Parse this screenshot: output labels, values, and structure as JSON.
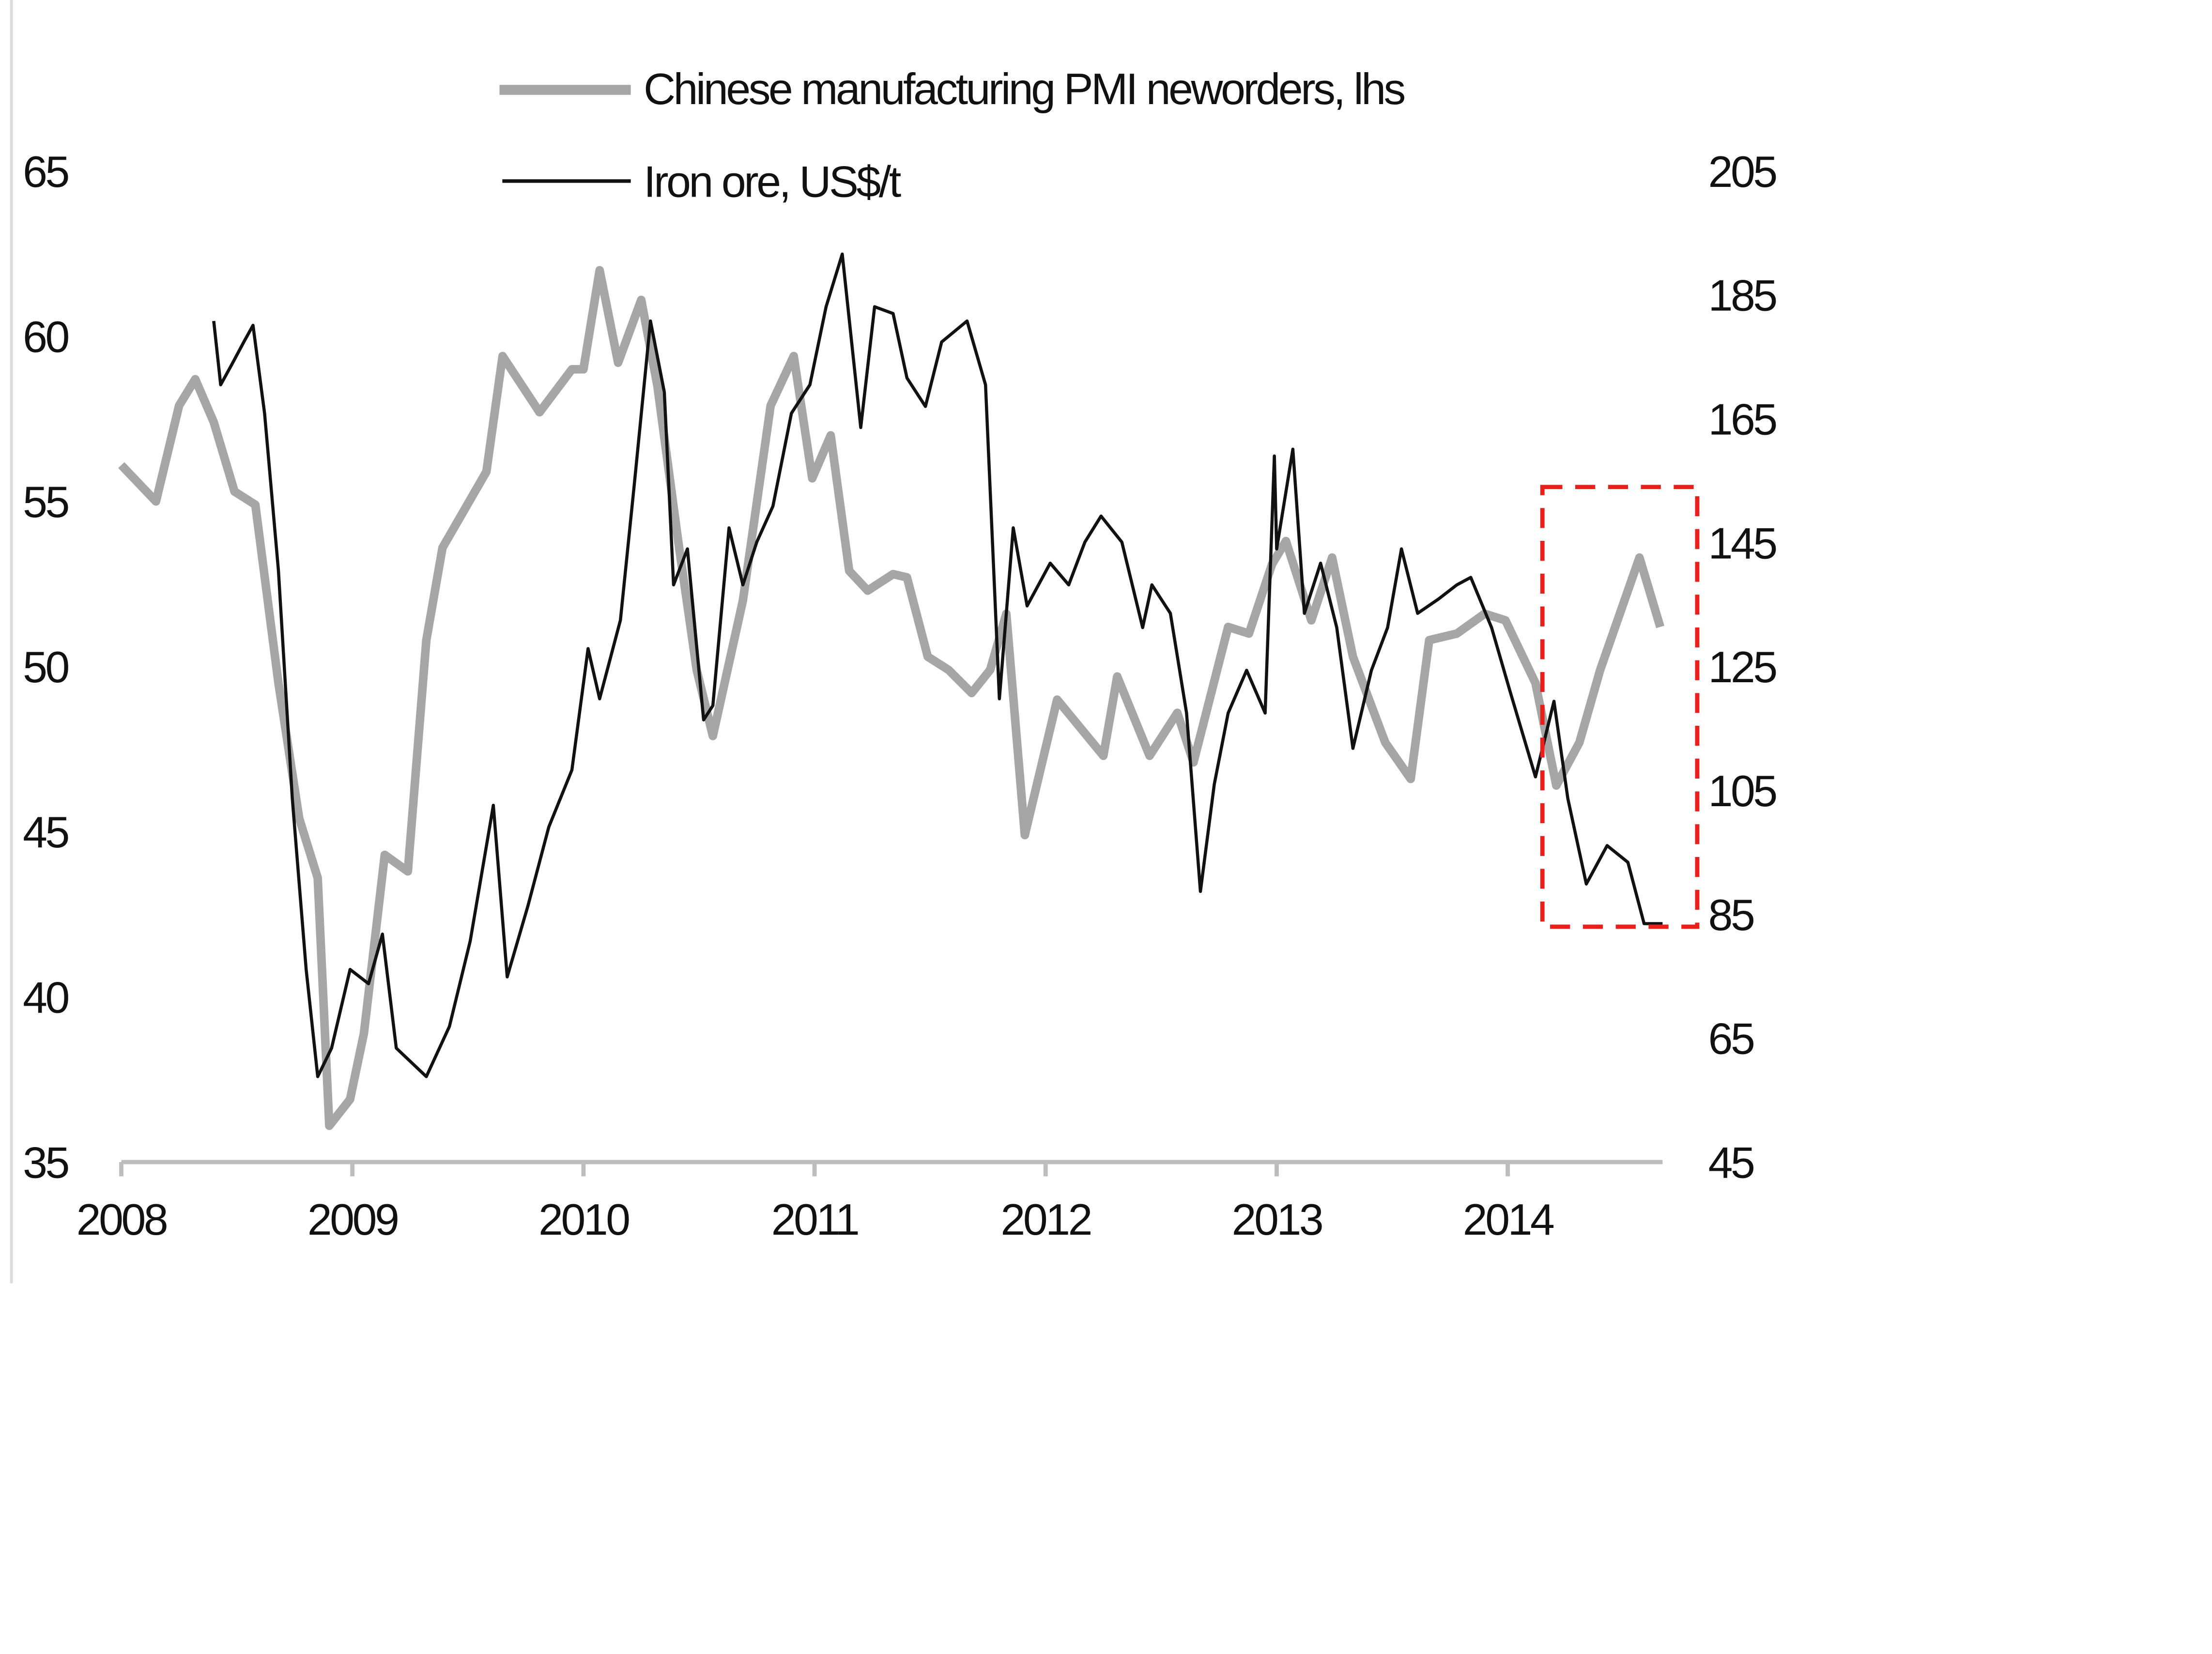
{
  "chart_data": {
    "type": "line",
    "title": "",
    "xlabel": "",
    "ylabel": "",
    "xlim": [
      2008,
      2014.67
    ],
    "ylim_left": [
      35,
      65
    ],
    "ylim_right": [
      45,
      205
    ],
    "x_ticks": [
      "2008",
      "2009",
      "2010",
      "2011",
      "2012",
      "2013",
      "2014"
    ],
    "y_left_ticks": [
      "65",
      "60",
      "55",
      "50",
      "45",
      "40",
      "35"
    ],
    "y_right_ticks": [
      "205",
      "185",
      "165",
      "145",
      "125",
      "105",
      "85",
      "65",
      "45"
    ],
    "grid": false,
    "legend_position": "top-center",
    "colors": {
      "pmi": "#a6a6a6",
      "iron": "#111111",
      "highlight": "#e8201c",
      "axis": "#bdbdbd"
    },
    "highlight_box": {
      "x": [
        2014.15,
        2014.82
      ],
      "y_right": [
        83,
        154
      ]
    },
    "series": [
      {
        "name": "Chinese manufacturing PMI neworders, lhs",
        "axis": "left",
        "x": [
          2008.0,
          2008.15,
          2008.25,
          2008.32,
          2008.4,
          2008.49,
          2008.58,
          2008.68,
          2008.77,
          2008.85,
          2008.9,
          2008.99,
          2009.05,
          2009.14,
          2009.24,
          2009.32,
          2009.39,
          2009.58,
          2009.65,
          2009.81,
          2009.95,
          2010.0,
          2010.07,
          2010.15,
          2010.25,
          2010.32,
          2010.41,
          2010.49,
          2010.56,
          2010.69,
          2010.81,
          2010.91,
          2010.99,
          2011.07,
          2011.15,
          2011.23,
          2011.34,
          2011.4,
          2011.49,
          2011.58,
          2011.68,
          2011.76,
          2011.83,
          2011.91,
          2012.05,
          2012.25,
          2012.31,
          2012.45,
          2012.57,
          2012.64,
          2012.79,
          2012.88,
          2012.98,
          2013.04,
          2013.15,
          2013.24,
          2013.33,
          2013.47,
          2013.58,
          2013.66,
          2013.78,
          2013.9,
          2013.99,
          2014.12,
          2014.21,
          2014.31,
          2014.4,
          2014.57,
          2014.66
        ],
        "y": [
          56.1,
          55.0,
          57.9,
          58.7,
          57.4,
          55.3,
          54.9,
          49.5,
          45.4,
          43.6,
          36.1,
          36.9,
          38.9,
          44.3,
          43.8,
          50.8,
          53.6,
          55.9,
          59.4,
          57.7,
          59.0,
          59.0,
          62.0,
          59.2,
          61.1,
          58.5,
          53.8,
          49.9,
          47.9,
          52.0,
          57.9,
          59.4,
          55.7,
          57.0,
          52.9,
          52.3,
          52.8,
          52.7,
          50.3,
          49.9,
          49.2,
          49.9,
          51.6,
          44.9,
          49.0,
          47.3,
          49.7,
          47.3,
          48.6,
          47.1,
          51.2,
          51.0,
          53.1,
          53.8,
          51.4,
          53.3,
          50.3,
          47.7,
          46.6,
          50.8,
          51.0,
          51.6,
          51.4,
          49.5,
          46.4,
          47.7,
          49.9,
          53.3,
          51.2
        ]
      },
      {
        "name": "Iron ore, US$/t",
        "axis": "right",
        "x": [
          2008.4,
          2008.43,
          2008.48,
          2008.53,
          2008.57,
          2008.62,
          2008.68,
          2008.74,
          2008.8,
          2008.85,
          2008.91,
          2008.99,
          2009.07,
          2009.13,
          2009.19,
          2009.32,
          2009.42,
          2009.51,
          2009.61,
          2009.67,
          2009.76,
          2009.85,
          2009.95,
          2010.02,
          2010.07,
          2010.16,
          2010.22,
          2010.29,
          2010.35,
          2010.39,
          2010.45,
          2010.52,
          2010.56,
          2010.63,
          2010.69,
          2010.75,
          2010.82,
          2010.9,
          2010.98,
          2011.05,
          2011.12,
          2011.2,
          2011.26,
          2011.34,
          2011.4,
          2011.48,
          2011.55,
          2011.66,
          2011.74,
          2011.8,
          2011.86,
          2011.92,
          2012.02,
          2012.1,
          2012.17,
          2012.24,
          2012.33,
          2012.42,
          2012.46,
          2012.54,
          2012.61,
          2012.67,
          2012.73,
          2012.79,
          2012.87,
          2012.95,
          2012.99,
          2013.0,
          2013.07,
          2013.12,
          2013.19,
          2013.26,
          2013.33,
          2013.41,
          2013.48,
          2013.54,
          2013.61,
          2013.7,
          2013.78,
          2013.84,
          2013.93,
          2014.01,
          2014.12,
          2014.2,
          2014.26,
          2014.34,
          2014.43,
          2014.52,
          2014.59,
          2014.67
        ],
        "y": [
          180.8,
          170.5,
          173.9,
          177.4,
          180.1,
          165.9,
          140.5,
          103.7,
          76.1,
          58.8,
          63.4,
          76.1,
          73.8,
          81.8,
          63.4,
          58.8,
          66.9,
          80.7,
          102.6,
          74.9,
          86.4,
          99.1,
          108.3,
          127.9,
          119.8,
          132.5,
          154.4,
          180.8,
          169.3,
          138.2,
          144.0,
          116.4,
          118.7,
          147.4,
          138.2,
          145.1,
          150.9,
          165.9,
          170.5,
          183.1,
          191.6,
          163.6,
          183.1,
          182.0,
          171.6,
          167.0,
          177.4,
          180.8,
          170.5,
          119.8,
          147.4,
          134.8,
          141.7,
          138.2,
          145.1,
          149.3,
          145.1,
          131.3,
          138.2,
          133.6,
          117.5,
          88.7,
          106.0,
          117.5,
          124.4,
          117.5,
          159.0,
          144.0,
          160.1,
          133.6,
          141.7,
          131.3,
          111.8,
          124.4,
          131.3,
          144.0,
          133.6,
          135.9,
          138.2,
          139.4,
          131.3,
          121.0,
          107.2,
          119.4,
          103.7,
          89.9,
          96.1,
          93.4,
          83.5,
          83.5
        ]
      }
    ]
  }
}
